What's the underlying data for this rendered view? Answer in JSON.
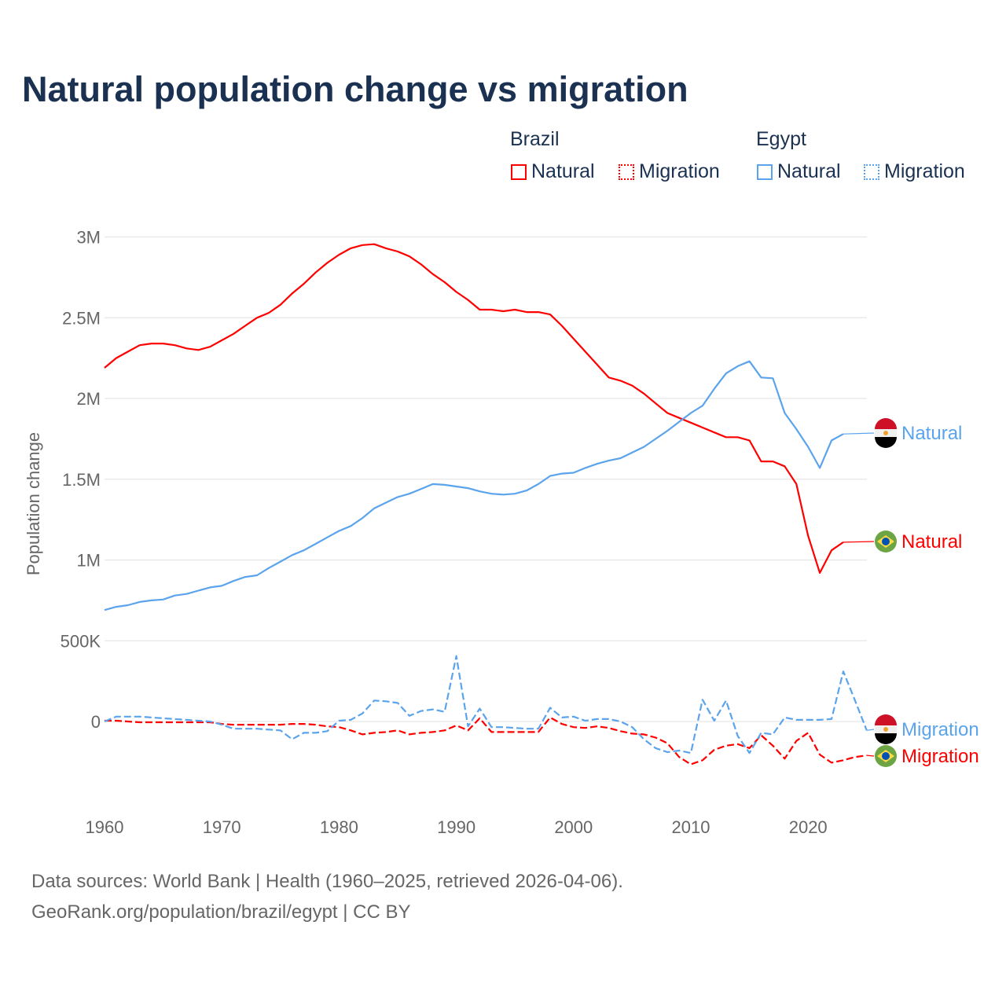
{
  "title": "Natural population change vs migration",
  "legend": {
    "groups": [
      {
        "country": "Brazil",
        "items": [
          {
            "label": "Natural",
            "style": "solid"
          },
          {
            "label": "Migration",
            "style": "dotted"
          }
        ],
        "color": "#ff0000"
      },
      {
        "country": "Egypt",
        "items": [
          {
            "label": "Natural",
            "style": "solid"
          },
          {
            "label": "Migration",
            "style": "dotted"
          }
        ],
        "color": "#5ba4ec"
      }
    ]
  },
  "footer": {
    "line1": "Data sources: World Bank | Health (1960–2025, retrieved 2026-04-06).",
    "line2": "GeoRank.org/population/brazil/egypt | CC BY"
  },
  "chart_data": {
    "type": "line",
    "title": "Natural population change vs migration",
    "xlabel": "",
    "ylabel": "Population change",
    "xlim": [
      1960,
      2025
    ],
    "ylim": [
      -500000,
      3000000
    ],
    "grid": true,
    "x_ticks": [
      1960,
      1970,
      1980,
      1990,
      2000,
      2010,
      2020
    ],
    "x_tick_labels": [
      "1960",
      "1970",
      "1980",
      "1990",
      "2000",
      "2010",
      "2020"
    ],
    "y_ticks": [
      0,
      500000,
      1000000,
      1500000,
      2000000,
      2500000,
      3000000
    ],
    "y_tick_labels": [
      "0",
      "500K",
      "1M",
      "1.5M",
      "2M",
      "2.5M",
      "3M"
    ],
    "series": [
      {
        "name": "Brazil Natural",
        "country": "Brazil",
        "label": "Natural",
        "color": "#ff0000",
        "dash": false,
        "start": 1960,
        "values": [
          2190000,
          2250000,
          2290000,
          2330000,
          2340000,
          2340000,
          2330000,
          2310000,
          2300000,
          2320000,
          2360000,
          2400000,
          2450000,
          2500000,
          2530000,
          2580000,
          2650000,
          2710000,
          2780000,
          2840000,
          2890000,
          2930000,
          2950000,
          2955000,
          2930000,
          2910000,
          2880000,
          2830000,
          2770000,
          2720000,
          2660000,
          2610000,
          2550000,
          2550000,
          2540000,
          2550000,
          2535000,
          2535000,
          2520000,
          2450000,
          2370000,
          2290000,
          2210000,
          2130000,
          2110000,
          2080000,
          2030000,
          1970000,
          1910000,
          1880000,
          1850000,
          1820000,
          1790000,
          1760000,
          1760000,
          1740000,
          1610000,
          1610000,
          1580000,
          1470000,
          1150000,
          920000,
          1060000,
          1110000
        ]
      },
      {
        "name": "Egypt Natural",
        "country": "Egypt",
        "label": "Natural",
        "color": "#5ba4ec",
        "dash": false,
        "start": 1960,
        "values": [
          690000,
          710000,
          720000,
          740000,
          750000,
          755000,
          780000,
          790000,
          810000,
          830000,
          840000,
          870000,
          895000,
          905000,
          950000,
          990000,
          1030000,
          1060000,
          1100000,
          1140000,
          1180000,
          1210000,
          1260000,
          1320000,
          1355000,
          1390000,
          1410000,
          1440000,
          1470000,
          1465000,
          1455000,
          1445000,
          1425000,
          1410000,
          1405000,
          1410000,
          1430000,
          1470000,
          1520000,
          1535000,
          1540000,
          1570000,
          1595000,
          1615000,
          1630000,
          1665000,
          1700000,
          1750000,
          1800000,
          1855000,
          1910000,
          1955000,
          2060000,
          2155000,
          2200000,
          2230000,
          2130000,
          2125000,
          1910000,
          1810000,
          1700000,
          1570000,
          1740000,
          1780000
        ]
      },
      {
        "name": "Brazil Migration",
        "country": "Brazil",
        "label": "Migration",
        "color": "#ff0000",
        "dash": true,
        "start": 1960,
        "values": [
          5000,
          5000,
          0,
          -5000,
          -5000,
          -5000,
          -5000,
          -5000,
          -5000,
          -5000,
          -15000,
          -20000,
          -20000,
          -20000,
          -20000,
          -20000,
          -15000,
          -15000,
          -20000,
          -30000,
          -35000,
          -55000,
          -80000,
          -70000,
          -65000,
          -55000,
          -80000,
          -70000,
          -65000,
          -55000,
          -25000,
          -55000,
          20000,
          -65000,
          -65000,
          -65000,
          -65000,
          -65000,
          25000,
          -15000,
          -35000,
          -40000,
          -30000,
          -40000,
          -60000,
          -75000,
          -80000,
          -100000,
          -135000,
          -220000,
          -265000,
          -240000,
          -175000,
          -150000,
          -140000,
          -165000,
          -85000,
          -150000,
          -230000,
          -120000,
          -70000,
          -205000,
          -255000,
          -240000,
          -220000,
          -210000
        ]
      },
      {
        "name": "Egypt Migration",
        "country": "Egypt",
        "label": "Migration",
        "color": "#5ba4ec",
        "dash": true,
        "start": 1960,
        "values": [
          0,
          30000,
          30000,
          30000,
          25000,
          20000,
          15000,
          10000,
          5000,
          0,
          -20000,
          -45000,
          -45000,
          -45000,
          -50000,
          -55000,
          -110000,
          -70000,
          -70000,
          -60000,
          5000,
          10000,
          50000,
          130000,
          125000,
          115000,
          35000,
          65000,
          75000,
          60000,
          405000,
          -30000,
          80000,
          -35000,
          -35000,
          -40000,
          -45000,
          -45000,
          85000,
          25000,
          30000,
          5000,
          15000,
          15000,
          0,
          -35000,
          -110000,
          -165000,
          -190000,
          -180000,
          -195000,
          135000,
          5000,
          130000,
          -90000,
          -195000,
          -70000,
          -80000,
          25000,
          10000,
          10000,
          10000,
          15000,
          310000,
          130000,
          -55000
        ]
      }
    ],
    "end_labels": [
      {
        "series": "Egypt Natural",
        "text": "Natural",
        "flag": "egypt-flag"
      },
      {
        "series": "Brazil Natural",
        "text": "Natural",
        "flag": "brazil-flag"
      },
      {
        "series": "Egypt Migration",
        "text": "Migration",
        "flag": "egypt-flag"
      },
      {
        "series": "Brazil Migration",
        "text": "Migration",
        "flag": "brazil-flag"
      }
    ]
  }
}
